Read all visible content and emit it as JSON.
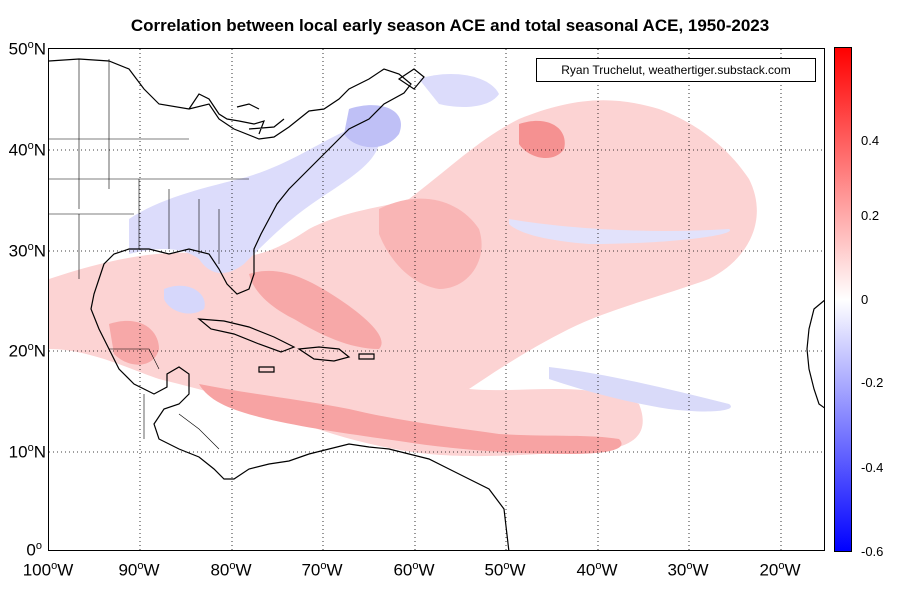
{
  "title": "Correlation between local early season ACE and total seasonal ACE, 1950-2023",
  "credit": "Ryan Truchelut, weathertiger.substack.com",
  "y_axis": [
    {
      "deg": "50",
      "hem": "N"
    },
    {
      "deg": "40",
      "hem": "N"
    },
    {
      "deg": "30",
      "hem": "N"
    },
    {
      "deg": "20",
      "hem": "N"
    },
    {
      "deg": "10",
      "hem": "N"
    },
    {
      "deg": "0",
      "hem": ""
    }
  ],
  "x_axis": [
    {
      "deg": "100",
      "hem": "W"
    },
    {
      "deg": "90",
      "hem": "W"
    },
    {
      "deg": "80",
      "hem": "W"
    },
    {
      "deg": "70",
      "hem": "W"
    },
    {
      "deg": "60",
      "hem": "W"
    },
    {
      "deg": "50",
      "hem": "W"
    },
    {
      "deg": "40",
      "hem": "W"
    },
    {
      "deg": "30",
      "hem": "W"
    },
    {
      "deg": "20",
      "hem": "W"
    }
  ],
  "colorbar": {
    "min": -0.6,
    "max": 0.6,
    "ticks": [
      "0.4",
      "0.2",
      "0",
      "-0.2",
      "-0.4",
      "-0.6"
    ],
    "colors": {
      "high": "#ff0000",
      "mid": "#ffffff",
      "low": "#0000ff"
    }
  },
  "map": {
    "lon_range": [
      -100,
      -15
    ],
    "lat_range": [
      0,
      50
    ],
    "fields": [
      {
        "kind": "positive",
        "strength": "weak",
        "region": "central Atlantic band"
      },
      {
        "kind": "positive",
        "strength": "moderate",
        "region": "Caribbean and main development region"
      },
      {
        "kind": "negative",
        "strength": "weak",
        "region": "US East Coast and Gulf Stream"
      }
    ]
  }
}
